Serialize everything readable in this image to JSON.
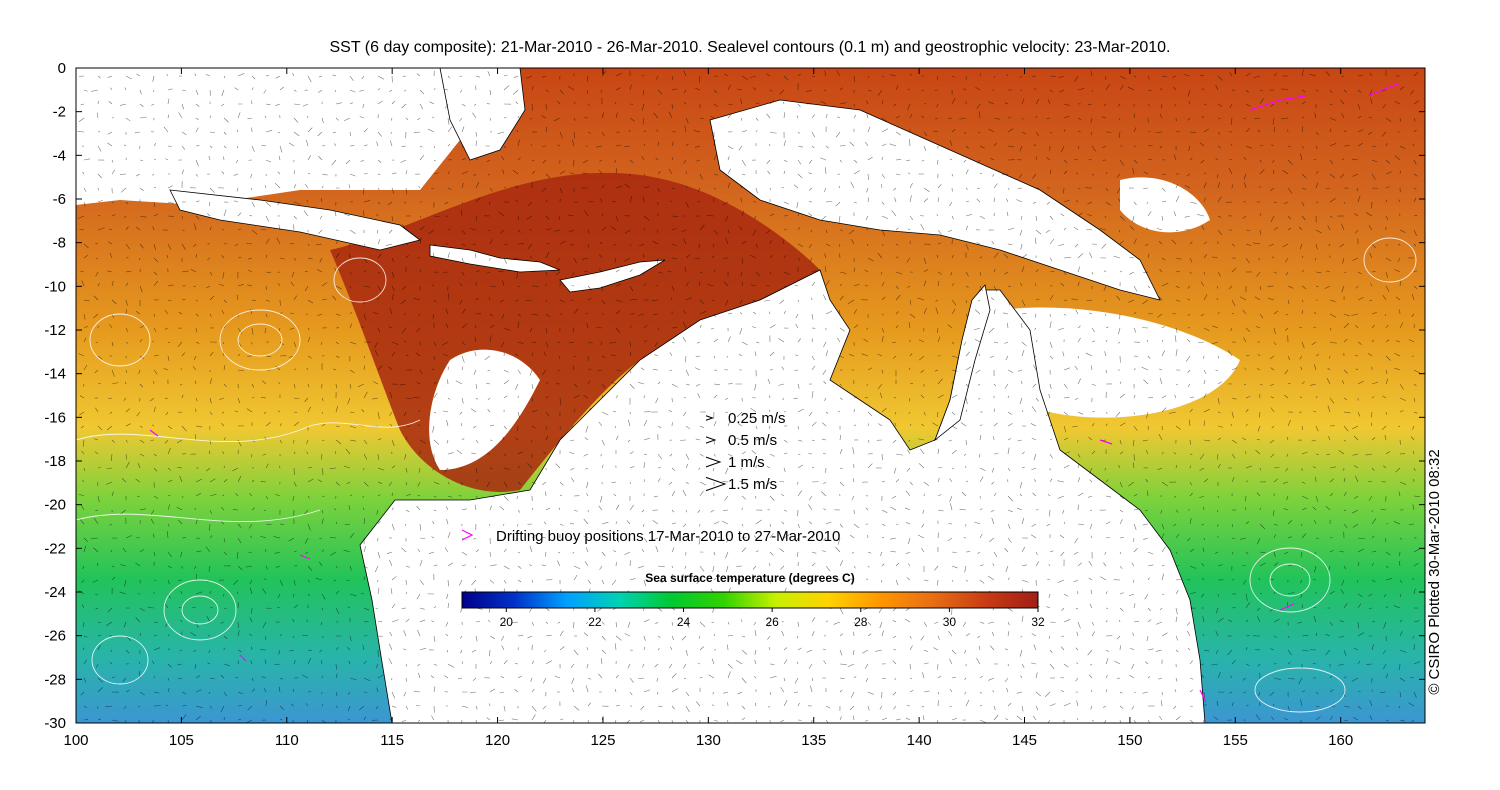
{
  "title": "SST (6 day composite): 21-Mar-2010 - 26-Mar-2010. Sealevel contours (0.1 m) and geostrophic velocity: 23-Mar-2010.",
  "credit": "© CSIRO Plotted 30-Mar-2010 08:32",
  "axes": {
    "x": {
      "min": 100,
      "max": 164,
      "ticks": [
        100,
        105,
        110,
        115,
        120,
        125,
        130,
        135,
        140,
        145,
        150,
        155,
        160
      ]
    },
    "y": {
      "min": -30,
      "max": 0,
      "ticks": [
        0,
        -2,
        -4,
        -6,
        -8,
        -10,
        -12,
        -14,
        -16,
        -18,
        -20,
        -22,
        -24,
        -26,
        -28,
        -30
      ]
    }
  },
  "velocity_legend": [
    {
      "label": "0.25 m/s",
      "speed": 0.25
    },
    {
      "label": "0.5 m/s",
      "speed": 0.5
    },
    {
      "label": "1 m/s",
      "speed": 1
    },
    {
      "label": "1.5 m/s",
      "speed": 1.5
    }
  ],
  "buoy_legend": {
    "label": "Drifting buoy positions 17-Mar-2010 to 27-Mar-2010",
    "color": "#ff00ff"
  },
  "colorbar": {
    "title": "Sea surface temperature (degrees C)",
    "min": 19,
    "max": 32,
    "ticks": [
      20,
      22,
      24,
      26,
      28,
      30,
      32
    ],
    "stops": [
      "#00008a",
      "#0032c8",
      "#00a0ff",
      "#00d2b4",
      "#00c832",
      "#32d200",
      "#c8f000",
      "#ffd200",
      "#ff9600",
      "#e66e14",
      "#c83c14",
      "#a01e14"
    ]
  },
  "colors": {
    "land": "#ffffff",
    "coast": "#000000",
    "contour": "#ffffff",
    "vector": "#000000"
  }
}
